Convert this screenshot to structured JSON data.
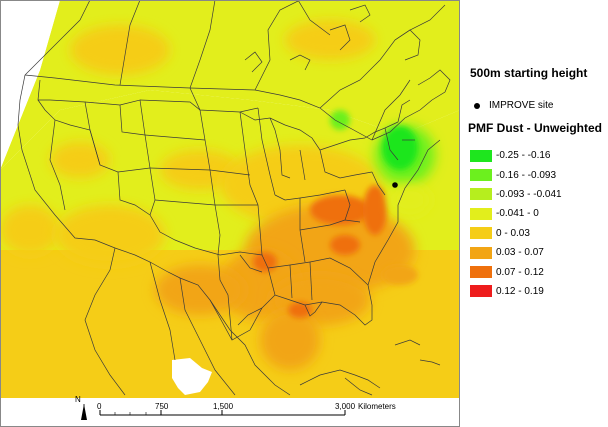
{
  "map": {
    "starting_height": "500m starting height",
    "site_label": "IMPROVE site",
    "legend_title": "PMF Dust - Unweighted",
    "legend_items": [
      {
        "label": "-0.25 - -0.16",
        "color": "#1ee61e"
      },
      {
        "label": "-0.16 - -0.093",
        "color": "#6cf01e"
      },
      {
        "label": "-0.093 - -0.041",
        "color": "#b6ee1e"
      },
      {
        "label": "-0.041 - 0",
        "color": "#e2ee1c"
      },
      {
        "label": "0 - 0.03",
        "color": "#f5cd17"
      },
      {
        "label": "0.03 - 0.07",
        "color": "#f2a514"
      },
      {
        "label": "0.07 - 0.12",
        "color": "#ef700c"
      },
      {
        "label": "0.12 - 0.19",
        "color": "#ee1c1c"
      }
    ],
    "scale_bar": {
      "ticks": [
        "0",
        "750",
        "1,500",
        "3,000"
      ],
      "units": "Kilometers"
    },
    "north_label": "N"
  }
}
